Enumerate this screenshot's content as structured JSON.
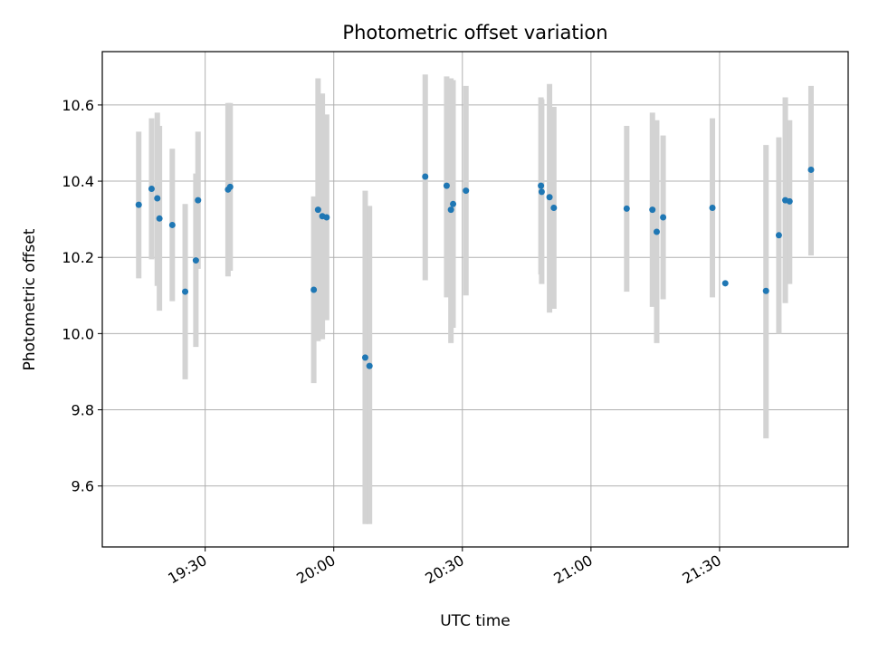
{
  "chart_data": {
    "type": "scatter",
    "title": "Photometric offset variation",
    "xlabel": "UTC time",
    "ylabel": "Photometric offset",
    "xlim": [
      "19:06:00",
      "22:00:00"
    ],
    "ylim": [
      9.44,
      10.74
    ],
    "grid": true,
    "x_ticks": [
      "19:30",
      "20:00",
      "20:30",
      "21:00",
      "21:30"
    ],
    "y_ticks": [
      9.6,
      9.8,
      10.0,
      10.2,
      10.4,
      10.6
    ],
    "colors": {
      "point": "#1f77b4",
      "error_bar": "#d3d3d3",
      "grid": "#b0b0b0"
    },
    "points": [
      {
        "x": "19:14:30",
        "y": 10.338,
        "ylo": 10.145,
        "yhi": 10.53
      },
      {
        "x": "19:17:30",
        "y": 10.38,
        "ylo": 10.195,
        "yhi": 10.565
      },
      {
        "x": "19:18:50",
        "y": 10.355,
        "ylo": 10.125,
        "yhi": 10.58
      },
      {
        "x": "19:19:20",
        "y": 10.302,
        "ylo": 10.06,
        "yhi": 10.545
      },
      {
        "x": "19:22:20",
        "y": 10.285,
        "ylo": 10.085,
        "yhi": 10.485
      },
      {
        "x": "19:25:20",
        "y": 10.11,
        "ylo": 9.88,
        "yhi": 10.34
      },
      {
        "x": "19:27:50",
        "y": 10.192,
        "ylo": 9.965,
        "yhi": 10.42
      },
      {
        "x": "19:28:20",
        "y": 10.35,
        "ylo": 10.17,
        "yhi": 10.53
      },
      {
        "x": "19:35:20",
        "y": 10.378,
        "ylo": 10.15,
        "yhi": 10.605
      },
      {
        "x": "19:35:50",
        "y": 10.385,
        "ylo": 10.165,
        "yhi": 10.605
      },
      {
        "x": "19:55:20",
        "y": 10.115,
        "ylo": 9.87,
        "yhi": 10.36
      },
      {
        "x": "19:56:20",
        "y": 10.325,
        "ylo": 9.98,
        "yhi": 10.67
      },
      {
        "x": "19:57:20",
        "y": 10.308,
        "ylo": 9.985,
        "yhi": 10.63
      },
      {
        "x": "19:58:20",
        "y": 10.305,
        "ylo": 10.035,
        "yhi": 10.575
      },
      {
        "x": "20:07:20",
        "y": 9.937,
        "ylo": 9.5,
        "yhi": 10.375
      },
      {
        "x": "20:08:20",
        "y": 9.915,
        "ylo": 9.5,
        "yhi": 10.335
      },
      {
        "x": "20:21:20",
        "y": 10.412,
        "ylo": 10.14,
        "yhi": 10.68
      },
      {
        "x": "20:26:20",
        "y": 10.388,
        "ylo": 10.095,
        "yhi": 10.675
      },
      {
        "x": "20:27:20",
        "y": 10.325,
        "ylo": 9.975,
        "yhi": 10.67
      },
      {
        "x": "20:27:50",
        "y": 10.34,
        "ylo": 10.015,
        "yhi": 10.665
      },
      {
        "x": "20:30:50",
        "y": 10.375,
        "ylo": 10.1,
        "yhi": 10.65
      },
      {
        "x": "20:48:20",
        "y": 10.388,
        "ylo": 10.155,
        "yhi": 10.62
      },
      {
        "x": "20:48:30",
        "y": 10.372,
        "ylo": 10.13,
        "yhi": 10.615
      },
      {
        "x": "20:50:20",
        "y": 10.358,
        "ylo": 10.055,
        "yhi": 10.655
      },
      {
        "x": "20:51:20",
        "y": 10.33,
        "ylo": 10.065,
        "yhi": 10.595
      },
      {
        "x": "21:08:20",
        "y": 10.328,
        "ylo": 10.11,
        "yhi": 10.545
      },
      {
        "x": "21:14:20",
        "y": 10.325,
        "ylo": 10.07,
        "yhi": 10.58
      },
      {
        "x": "21:15:20",
        "y": 10.267,
        "ylo": 9.975,
        "yhi": 10.56
      },
      {
        "x": "21:16:50",
        "y": 10.305,
        "ylo": 10.09,
        "yhi": 10.52
      },
      {
        "x": "21:28:20",
        "y": 10.33,
        "ylo": 10.095,
        "yhi": 10.565
      },
      {
        "x": "21:31:20",
        "y": 10.132,
        "ylo": null,
        "yhi": null
      },
      {
        "x": "21:40:50",
        "y": 10.112,
        "ylo": 9.725,
        "yhi": 10.495
      },
      {
        "x": "21:43:50",
        "y": 10.258,
        "ylo": 10.0,
        "yhi": 10.515
      },
      {
        "x": "21:45:20",
        "y": 10.35,
        "ylo": 10.08,
        "yhi": 10.62
      },
      {
        "x": "21:46:20",
        "y": 10.347,
        "ylo": 10.13,
        "yhi": 10.56
      },
      {
        "x": "21:51:20",
        "y": 10.43,
        "ylo": 10.205,
        "yhi": 10.65
      }
    ]
  }
}
